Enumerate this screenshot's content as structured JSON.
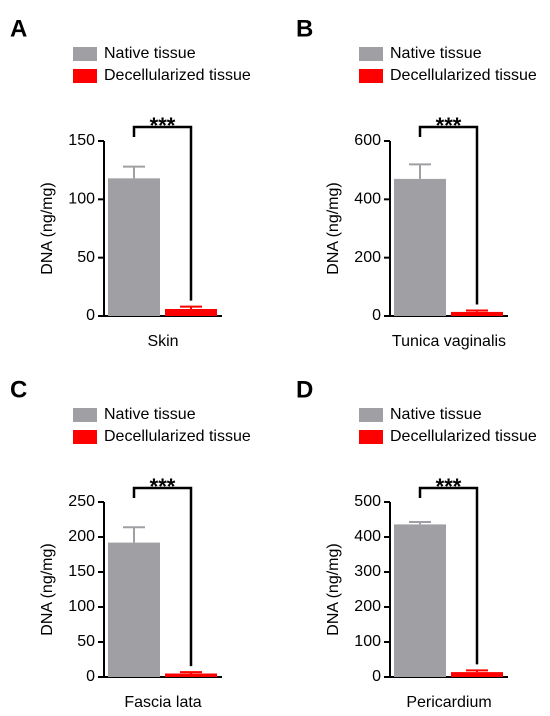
{
  "chart_data": [
    {
      "type": "bar",
      "panel": "A",
      "ylabel": "DNA (ng/mg)",
      "categories": [
        "Skin"
      ],
      "annotation": "***",
      "ylim": [
        0,
        150
      ],
      "yticks": [
        0,
        50,
        100,
        150
      ],
      "series": [
        {
          "name": "Native tissue",
          "color": "#a0a0a4",
          "values": [
            118
          ],
          "errors": [
            10
          ]
        },
        {
          "name": "Decellularized tissue",
          "color": "#ff0000",
          "values": [
            6
          ],
          "errors": [
            2
          ]
        }
      ]
    },
    {
      "type": "bar",
      "panel": "B",
      "ylabel": "DNA (ng/mg)",
      "categories": [
        "Tunica vaginalis"
      ],
      "annotation": "***",
      "ylim": [
        0,
        600
      ],
      "yticks": [
        0,
        200,
        400,
        600
      ],
      "series": [
        {
          "name": "Native tissue",
          "color": "#a0a0a4",
          "values": [
            470
          ],
          "errors": [
            50
          ]
        },
        {
          "name": "Decellularized tissue",
          "color": "#ff0000",
          "values": [
            14
          ],
          "errors": [
            5
          ]
        }
      ]
    },
    {
      "type": "bar",
      "panel": "C",
      "ylabel": "DNA (ng/mg)",
      "categories": [
        "Fascia lata"
      ],
      "annotation": "***",
      "ylim": [
        0,
        250
      ],
      "yticks": [
        0,
        50,
        100,
        150,
        200,
        250
      ],
      "series": [
        {
          "name": "Native tissue",
          "color": "#a0a0a4",
          "values": [
            192
          ],
          "errors": [
            22
          ]
        },
        {
          "name": "Decellularized tissue",
          "color": "#ff0000",
          "values": [
            5
          ],
          "errors": [
            2
          ]
        }
      ]
    },
    {
      "type": "bar",
      "panel": "D",
      "ylabel": "DNA (ng/mg)",
      "categories": [
        "Pericardium"
      ],
      "annotation": "***",
      "ylim": [
        0,
        500
      ],
      "yticks": [
        0,
        100,
        200,
        300,
        400,
        500
      ],
      "series": [
        {
          "name": "Native tissue",
          "color": "#a0a0a4",
          "values": [
            436
          ],
          "errors": [
            7
          ]
        },
        {
          "name": "Decellularized tissue",
          "color": "#ff0000",
          "values": [
            14
          ],
          "errors": [
            5
          ]
        }
      ]
    }
  ]
}
